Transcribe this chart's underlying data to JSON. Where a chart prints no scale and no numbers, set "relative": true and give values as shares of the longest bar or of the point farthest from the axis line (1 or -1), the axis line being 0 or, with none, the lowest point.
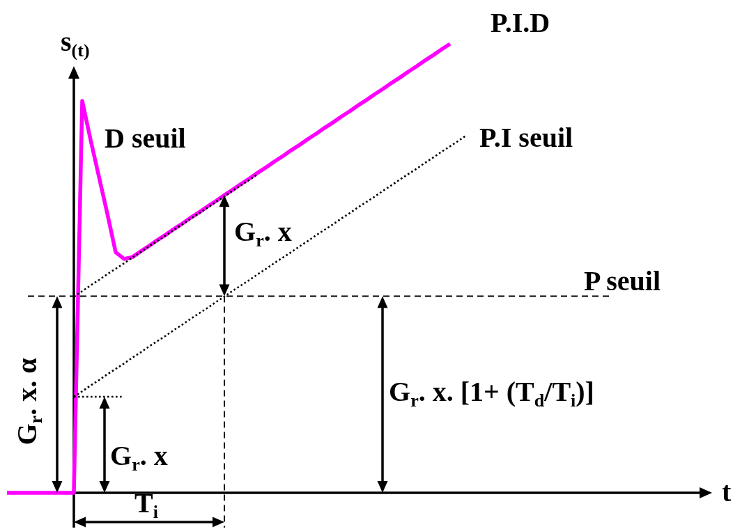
{
  "chart_data": {
    "type": "line",
    "relative": true,
    "xlabel": "t",
    "ylabel": "s$_{(t)}$",
    "categories": [
      null,
      null,
      null,
      null,
      null,
      null,
      null,
      null,
      null,
      null,
      null,
      null,
      null,
      null,
      null,
      null,
      null,
      null,
      null,
      null,
      null,
      null,
      null,
      null,
      null,
      null,
      null,
      null,
      null,
      null,
      null,
      null,
      null,
      null,
      null,
      null,
      null,
      null,
      null,
      null,
      null,
      null,
      null,
      null,
      null,
      null,
      null,
      null,
      null,
      null,
      null,
      null,
      null,
      null,
      null,
      null,
      null,
      null,
      null,
      null,
      null,
      null,
      null,
      null,
      null,
      null,
      null,
      null,
      null,
      null,
      null,
      null,
      null,
      null,
      null,
      null,
      null,
      null,
      null,
      null,
      null,
      null,
      null,
      null,
      null
    ],
    "series": [
      {
        "name": "P.I.D",
        "color": "#ff00ff",
        "line_style": "solid",
        "values": [
          0,
          0,
          0,
          0,
          0,
          0,
          0,
          0,
          0,
          0.873,
          0.786,
          0.704,
          0.622,
          0.536,
          0.521,
          0.525,
          0.538,
          0.55,
          0.563,
          0.575,
          0.588,
          0.6,
          0.613,
          0.625,
          0.638,
          0.65,
          0.663,
          0.675,
          0.688,
          0.7,
          0.713,
          0.725,
          0.738,
          0.75,
          0.763,
          0.775,
          0.788,
          0.8,
          0.813,
          0.825,
          0.838,
          0.85,
          0.863,
          0.875,
          0.888,
          0.9,
          0.913,
          0.925,
          0.938,
          0.95,
          0.963,
          0.975,
          0.988,
          1,
          null,
          null,
          null,
          null,
          null,
          null,
          null,
          null,
          null,
          null,
          null,
          null,
          null,
          null,
          null,
          null,
          null,
          null,
          null,
          null,
          null,
          null,
          null,
          null,
          null,
          null,
          null,
          null,
          null,
          null,
          null
        ]
      },
      {
        "name": "P.I seuil",
        "color": "#000000",
        "line_style": "dotted",
        "values": [
          null,
          null,
          null,
          null,
          null,
          null,
          null,
          null,
          0.214,
          0.226,
          0.239,
          0.251,
          0.264,
          0.276,
          0.288,
          0.301,
          0.313,
          0.326,
          0.338,
          0.35,
          0.363,
          0.375,
          0.388,
          0.4,
          0.412,
          0.425,
          0.437,
          0.45,
          0.462,
          0.474,
          0.487,
          0.499,
          0.512,
          0.524,
          0.536,
          0.549,
          0.561,
          0.574,
          0.586,
          0.598,
          0.611,
          0.623,
          0.636,
          0.648,
          0.66,
          0.673,
          0.685,
          0.698,
          0.71,
          0.722,
          0.735,
          0.747,
          0.76,
          0.772,
          0.784,
          0.797,
          null,
          null,
          null,
          null,
          null,
          null,
          null,
          null,
          null,
          null,
          null,
          null,
          null,
          null,
          null,
          null,
          null,
          null,
          null,
          null,
          null,
          null,
          null,
          null,
          null,
          null,
          null,
          null,
          null
        ]
      },
      {
        "color": "#000000",
        "line_style": "dotted",
        "values": [
          null,
          null,
          null,
          null,
          null,
          null,
          null,
          null,
          0.437,
          0.449,
          0.462,
          0.474,
          0.487,
          0.499,
          0.511,
          0.524,
          0.536,
          0.549,
          0.561,
          0.573,
          0.586,
          0.598,
          0.611,
          0.623,
          0.635,
          0.648,
          0.66,
          0.673,
          0.685,
          0.697,
          0.71,
          null,
          null,
          null,
          null,
          null,
          null,
          null,
          null,
          null,
          null,
          null,
          null,
          null,
          null,
          null,
          null,
          null,
          null,
          null,
          null,
          null,
          null,
          null,
          null,
          null,
          null,
          null,
          null,
          null,
          null,
          null,
          null,
          null,
          null,
          null,
          null,
          null,
          null,
          null,
          null,
          null,
          null,
          null,
          null,
          null,
          null,
          null,
          null,
          null,
          null,
          null,
          null,
          null,
          null
        ]
      },
      {
        "color": "#000000",
        "line_style": "dotted",
        "values": [
          null,
          null,
          null,
          null,
          null,
          null,
          null,
          null,
          0.214,
          0.214,
          0.214,
          0.214,
          0.214,
          0.214,
          0.214,
          null,
          null,
          null,
          null,
          null,
          null,
          null,
          null,
          null,
          null,
          null,
          null,
          null,
          null,
          null,
          null,
          null,
          null,
          null,
          null,
          null,
          null,
          null,
          null,
          null,
          null,
          null,
          null,
          null,
          null,
          null,
          null,
          null,
          null,
          null,
          null,
          null,
          null,
          null,
          null,
          null,
          null,
          null,
          null,
          null,
          null,
          null,
          null,
          null,
          null,
          null,
          null,
          null,
          null,
          null,
          null,
          null,
          null,
          null,
          null,
          null,
          null,
          null,
          null,
          null,
          null,
          null,
          null,
          null,
          null
        ]
      }
    ],
    "ref_lines": [
      {
        "axis": "y",
        "value": 0.438,
        "label": "P seuil",
        "color": "#000000",
        "line_style": "dashed"
      }
    ],
    "annotations": [
      "D seuil",
      "G$_{r}$. x",
      "G$_{r}$. x. α",
      "G$_{r}$. x. [1+ (T$_{d}$/T$_{i}$)]",
      "G$_{r}$. x",
      "T$_{i}$"
    ]
  }
}
